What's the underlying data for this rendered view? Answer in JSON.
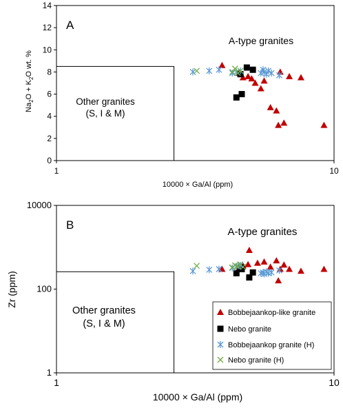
{
  "chart_data": [
    {
      "panel_label": "A",
      "type": "scatter",
      "x_scale": "log",
      "xlim": [
        1,
        10
      ],
      "ylim": [
        0,
        14
      ],
      "xticks": [
        1,
        10
      ],
      "xtick_labels": [
        "1",
        "10"
      ],
      "yticks": [
        0,
        2,
        4,
        6,
        8,
        10,
        12,
        14
      ],
      "ytick_labels": [
        "0",
        "2",
        "4",
        "6",
        "8",
        "10",
        "12",
        "14"
      ],
      "xlabel": "10000 × Ga/Al (ppm)",
      "ylabel": {
        "p1": "Na",
        "s1": "2",
        "p2": "O + K",
        "s2": "2",
        "p3": "O wt. %"
      },
      "grid": false,
      "region_box": {
        "x_max": 2.65,
        "y_max": 8.5
      },
      "annotations": {
        "other_line1": "Other granites",
        "other_line2": "(S, I & M)",
        "atype": "A-type granites"
      },
      "series": [
        {
          "key": "bl",
          "marker": "triangle",
          "color": "#c00000",
          "points": [
            [
              3.95,
              8.6
            ],
            [
              4.55,
              7.9
            ],
            [
              4.7,
              7.5
            ],
            [
              4.9,
              7.6
            ],
            [
              5.05,
              7.4
            ],
            [
              5.2,
              7.0
            ],
            [
              5.45,
              6.5
            ],
            [
              5.6,
              7.2
            ],
            [
              5.9,
              4.8
            ],
            [
              6.2,
              4.5
            ],
            [
              6.4,
              8.0
            ],
            [
              6.3,
              3.2
            ],
            [
              6.6,
              3.4
            ],
            [
              6.9,
              7.6
            ],
            [
              7.6,
              7.5
            ],
            [
              9.2,
              3.2
            ]
          ]
        },
        {
          "key": "nebo",
          "marker": "square",
          "color": "#000000",
          "points": [
            [
              4.45,
              5.7
            ],
            [
              4.65,
              6.0
            ],
            [
              4.6,
              7.8
            ],
            [
              4.85,
              8.4
            ],
            [
              5.1,
              8.2
            ]
          ]
        },
        {
          "key": "bh",
          "marker": "asterisk",
          "color": "#5b9bd5",
          "points": [
            [
              3.1,
              8.0
            ],
            [
              3.55,
              8.1
            ],
            [
              3.85,
              8.2
            ],
            [
              4.3,
              7.9
            ],
            [
              4.45,
              8.0
            ],
            [
              4.6,
              8.1
            ],
            [
              5.45,
              7.9
            ],
            [
              5.55,
              8.2
            ],
            [
              5.6,
              8.0
            ],
            [
              5.7,
              7.8
            ],
            [
              5.8,
              8.1
            ],
            [
              5.95,
              7.9
            ],
            [
              6.35,
              7.7
            ]
          ]
        },
        {
          "key": "nh",
          "marker": "x",
          "color": "#70ad47",
          "points": [
            [
              3.2,
              8.1
            ],
            [
              4.3,
              8.0
            ],
            [
              4.4,
              8.3
            ],
            [
              4.5,
              7.9
            ],
            [
              4.6,
              8.1
            ]
          ]
        }
      ]
    },
    {
      "panel_label": "B",
      "type": "scatter",
      "x_scale": "log",
      "y_scale": "log",
      "xlim": [
        1,
        10
      ],
      "ylim": [
        1,
        10000
      ],
      "xticks": [
        1,
        10
      ],
      "xtick_labels": [
        "1",
        "10"
      ],
      "yticks": [
        1,
        100,
        10000
      ],
      "ytick_labels": [
        "1",
        "100",
        "10000"
      ],
      "xlabel": "10000 × Ga/Al (ppm)",
      "ylabel": "Zr (ppm)",
      "grid": false,
      "legend_position": "bottom-right",
      "region_box": {
        "x_max": 2.65,
        "y_max": 260
      },
      "annotations": {
        "other_line1": "Other granites",
        "other_line2": "(S, I & M)",
        "atype": "A-type granites"
      },
      "series": [
        {
          "key": "bl",
          "name": "Bobbejaankop-like granite",
          "marker": "triangle",
          "color": "#c00000",
          "points": [
            [
              3.95,
              300
            ],
            [
              4.55,
              330
            ],
            [
              4.7,
              360
            ],
            [
              4.9,
              390
            ],
            [
              4.95,
              850
            ],
            [
              5.3,
              420
            ],
            [
              5.6,
              450
            ],
            [
              5.9,
              340
            ],
            [
              6.2,
              480
            ],
            [
              6.4,
              300
            ],
            [
              6.3,
              160
            ],
            [
              6.6,
              380
            ],
            [
              6.9,
              300
            ],
            [
              7.6,
              270
            ],
            [
              9.2,
              300
            ]
          ]
        },
        {
          "key": "nebo",
          "name": "Nebo granite",
          "marker": "square",
          "color": "#000000",
          "points": [
            [
              4.45,
              240
            ],
            [
              4.65,
              300
            ],
            [
              4.6,
              330
            ],
            [
              4.95,
              190
            ],
            [
              5.1,
              250
            ]
          ]
        },
        {
          "key": "bh",
          "name": "Bobbejaankop granite (H)",
          "marker": "asterisk",
          "color": "#5b9bd5",
          "points": [
            [
              3.1,
              270
            ],
            [
              3.55,
              290
            ],
            [
              3.85,
              300
            ],
            [
              4.3,
              320
            ],
            [
              4.45,
              350
            ],
            [
              4.6,
              370
            ],
            [
              5.45,
              240
            ],
            [
              5.55,
              250
            ],
            [
              5.6,
              230
            ],
            [
              5.7,
              260
            ],
            [
              5.8,
              240
            ],
            [
              5.95,
              250
            ],
            [
              6.35,
              280
            ]
          ]
        },
        {
          "key": "nh",
          "name": "Nebo granite (H)",
          "marker": "x",
          "color": "#70ad47",
          "points": [
            [
              3.2,
              360
            ],
            [
              4.3,
              330
            ],
            [
              4.4,
              370
            ],
            [
              4.5,
              350
            ],
            [
              4.6,
              390
            ],
            [
              4.7,
              340
            ]
          ]
        }
      ]
    }
  ]
}
